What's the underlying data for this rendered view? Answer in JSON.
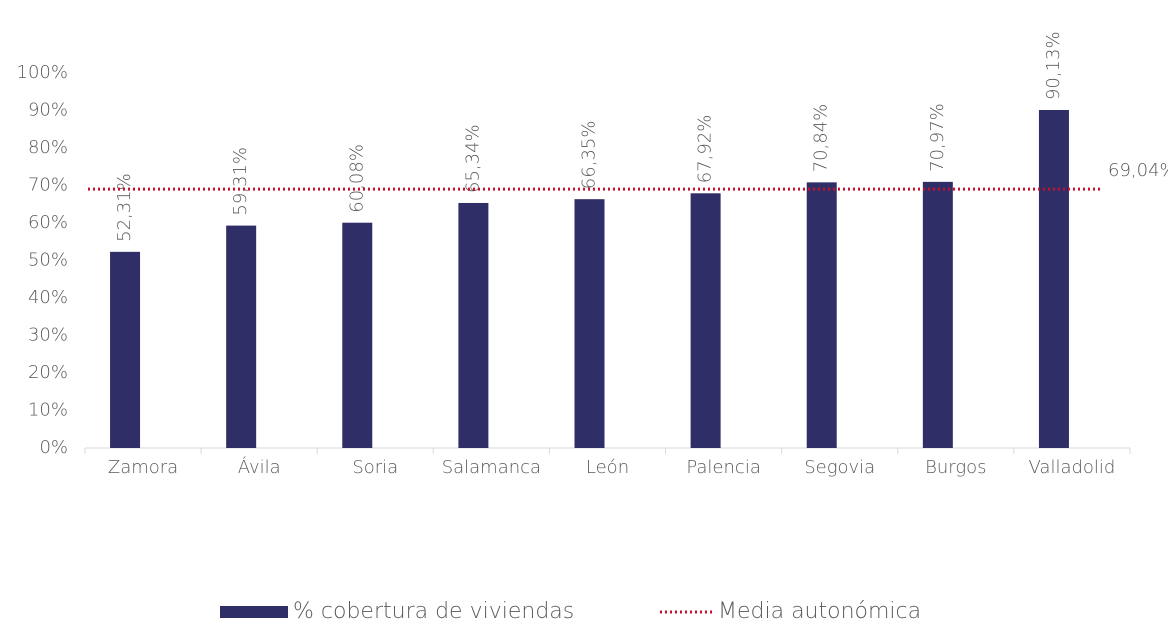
{
  "chart_data": {
    "type": "bar",
    "categories": [
      "Zamora",
      "Ávila",
      "Soria",
      "Salamanca",
      "León",
      "Palencia",
      "Segovia",
      "Burgos",
      "Valladolid"
    ],
    "series": [
      {
        "name": "% cobertura de viviendas",
        "color": "#302e66",
        "values": [
          52.31,
          59.31,
          60.08,
          65.34,
          66.35,
          67.92,
          70.84,
          70.97,
          90.13
        ],
        "value_labels": [
          "52,31%",
          "59,31%",
          "60,08%",
          "65,34%",
          "66,35%",
          "67,92%",
          "70,84%",
          "70,97%",
          "90,13%"
        ]
      }
    ],
    "reference_line": {
      "name": "Media autonómica",
      "value": 69.04,
      "value_label": "69,04%",
      "color": "#c8102e"
    },
    "ylim": [
      0,
      100
    ],
    "yticks": [
      {
        "value": 0,
        "label": "0%"
      },
      {
        "value": 10,
        "label": "10%"
      },
      {
        "value": 20,
        "label": "20%"
      },
      {
        "value": 30,
        "label": "30%"
      },
      {
        "value": 40,
        "label": "40%"
      },
      {
        "value": 50,
        "label": "50%"
      },
      {
        "value": 60,
        "label": "60%"
      },
      {
        "value": 70,
        "label": "70%"
      },
      {
        "value": 80,
        "label": "80%"
      },
      {
        "value": 90,
        "label": "90%"
      },
      {
        "value": 100,
        "label": "100%"
      }
    ]
  }
}
